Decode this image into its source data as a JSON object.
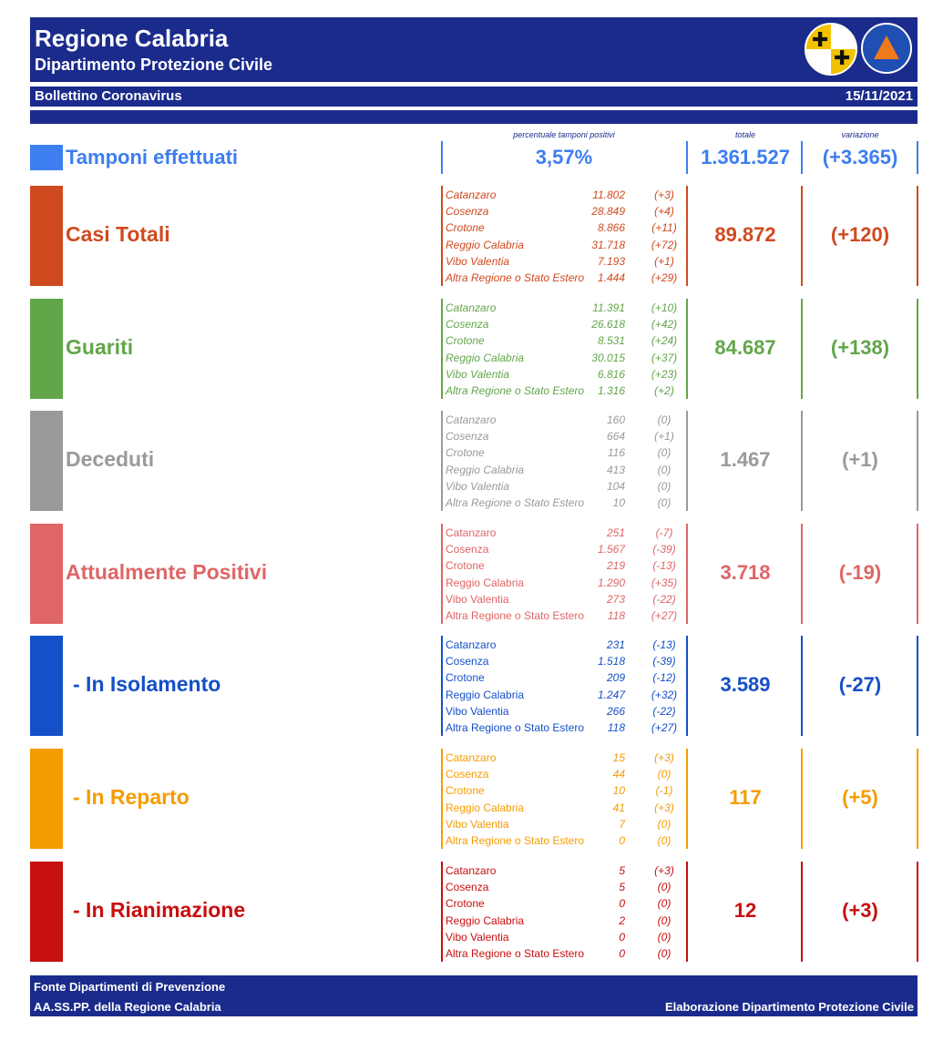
{
  "header": {
    "title": "Regione Calabria",
    "subtitle": "Dipartimento Protezione Civile",
    "bulletin": "Bollettino Coronavirus",
    "date": "15/11/2021"
  },
  "columns": {
    "percent_label": "percentuale tamponi positivi",
    "total_label": "totale",
    "variation_label": "variazione"
  },
  "tamponi": {
    "label": "Tamponi effettuati",
    "percent": "3,57%",
    "total": "1.361.527",
    "variation": "(+3.365)",
    "color": "#3d7ef0"
  },
  "sections": [
    {
      "label": "Casi Totali",
      "color": "#d04a1f",
      "italic": true,
      "total": "89.872",
      "variation": "(+120)",
      "provinces": [
        {
          "name": "Catanzaro",
          "value": "11.802",
          "delta": "(+3)"
        },
        {
          "name": "Cosenza",
          "value": "28.849",
          "delta": "(+4)"
        },
        {
          "name": "Crotone",
          "value": "8.866",
          "delta": "(+11)"
        },
        {
          "name": "Reggio Calabria",
          "value": "31.718",
          "delta": "(+72)"
        },
        {
          "name": "Vibo Valentia",
          "value": "7.193",
          "delta": "(+1)"
        },
        {
          "name": "Altra Regione o Stato Estero",
          "value": "1.444",
          "delta": "(+29)"
        }
      ]
    },
    {
      "label": "Guariti",
      "color": "#62a64a",
      "italic": true,
      "total": "84.687",
      "variation": "(+138)",
      "provinces": [
        {
          "name": "Catanzaro",
          "value": "11.391",
          "delta": "(+10)"
        },
        {
          "name": "Cosenza",
          "value": "26.618",
          "delta": "(+42)"
        },
        {
          "name": "Crotone",
          "value": "8.531",
          "delta": "(+24)"
        },
        {
          "name": "Reggio Calabria",
          "value": "30.015",
          "delta": "(+37)"
        },
        {
          "name": "Vibo Valentia",
          "value": "6.816",
          "delta": "(+23)"
        },
        {
          "name": "Altra Regione o Stato Estero",
          "value": "1.316",
          "delta": "(+2)"
        }
      ]
    },
    {
      "label": "Deceduti",
      "color": "#9a9a9a",
      "italic": true,
      "total": "1.467",
      "variation": "(+1)",
      "provinces": [
        {
          "name": "Catanzaro",
          "value": "160",
          "delta": "(0)"
        },
        {
          "name": "Cosenza",
          "value": "664",
          "delta": "(+1)"
        },
        {
          "name": "Crotone",
          "value": "116",
          "delta": "(0)"
        },
        {
          "name": "Reggio Calabria",
          "value": "413",
          "delta": "(0)"
        },
        {
          "name": "Vibo Valentia",
          "value": "104",
          "delta": "(0)"
        },
        {
          "name": "Altra Regione o Stato Estero",
          "value": "10",
          "delta": "(0)"
        }
      ]
    },
    {
      "label": "Attualmente Positivi",
      "color": "#e06565",
      "italic": false,
      "total": "3.718",
      "variation": "(-19)",
      "provinces": [
        {
          "name": "Catanzaro",
          "value": "251",
          "delta": "(-7)"
        },
        {
          "name": "Cosenza",
          "value": "1.567",
          "delta": "(-39)"
        },
        {
          "name": "Crotone",
          "value": "219",
          "delta": "(-13)"
        },
        {
          "name": "Reggio Calabria",
          "value": "1.290",
          "delta": "(+35)"
        },
        {
          "name": "Vibo Valentia",
          "value": "273",
          "delta": "(-22)"
        },
        {
          "name": "Altra Regione o Stato Estero",
          "value": "118",
          "delta": "(+27)"
        }
      ]
    },
    {
      "label": "- In Isolamento",
      "color": "#1450c8",
      "italic": false,
      "total": "3.589",
      "variation": "(-27)",
      "provinces": [
        {
          "name": "Catanzaro",
          "value": "231",
          "delta": "(-13)"
        },
        {
          "name": "Cosenza",
          "value": "1.518",
          "delta": "(-39)"
        },
        {
          "name": "Crotone",
          "value": "209",
          "delta": "(-12)"
        },
        {
          "name": "Reggio Calabria",
          "value": "1.247",
          "delta": "(+32)"
        },
        {
          "name": "Vibo Valentia",
          "value": "266",
          "delta": "(-22)"
        },
        {
          "name": "Altra Regione o Stato Estero",
          "value": "118",
          "delta": "(+27)"
        }
      ]
    },
    {
      "label": "- In Reparto",
      "color": "#f59c00",
      "italic": false,
      "total": "117",
      "variation": "(+5)",
      "provinces": [
        {
          "name": "Catanzaro",
          "value": "15",
          "delta": "(+3)"
        },
        {
          "name": "Cosenza",
          "value": "44",
          "delta": "(0)"
        },
        {
          "name": "Crotone",
          "value": "10",
          "delta": "(-1)"
        },
        {
          "name": "Reggio Calabria",
          "value": "41",
          "delta": "(+3)"
        },
        {
          "name": "Vibo Valentia",
          "value": "7",
          "delta": "(0)"
        },
        {
          "name": "Altra Regione o Stato Estero",
          "value": "0",
          "delta": "(0)"
        }
      ]
    },
    {
      "label": "- In Rianimazione",
      "color": "#c80f0f",
      "italic": false,
      "total": "12",
      "variation": "(+3)",
      "provinces": [
        {
          "name": "Catanzaro",
          "value": "5",
          "delta": "(+3)"
        },
        {
          "name": "Cosenza",
          "value": "5",
          "delta": "(0)"
        },
        {
          "name": "Crotone",
          "value": "0",
          "delta": "(0)"
        },
        {
          "name": "Reggio Calabria",
          "value": "2",
          "delta": "(0)"
        },
        {
          "name": "Vibo Valentia",
          "value": "0",
          "delta": "(0)"
        },
        {
          "name": "Altra Regione o Stato Estero",
          "value": "0",
          "delta": "(0)"
        }
      ]
    }
  ],
  "footer": {
    "source_line1": "Fonte Dipartimenti di Prevenzione",
    "source_line2": "AA.SS.PP.  della Regione Calabria",
    "elaboration": "Elaborazione Dipartimento Protezione Civile"
  },
  "icons": {
    "crest": "calabria-crest-icon",
    "civil_protection": "protezione-civile-logo-icon"
  }
}
